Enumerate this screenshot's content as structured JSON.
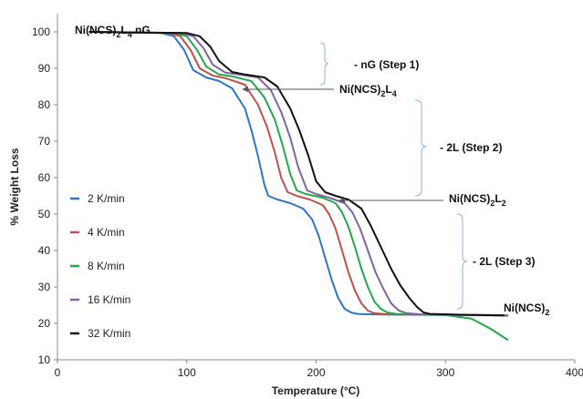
{
  "chart_data": {
    "type": "line",
    "xlabel": "Temperature (°C)",
    "ylabel": "% Weight Loss",
    "xlim": [
      0,
      400
    ],
    "ylim": [
      10,
      105
    ],
    "x_ticks": [
      "0",
      "100",
      "200",
      "300",
      "400"
    ],
    "y_ticks": [
      "10",
      "20",
      "30",
      "40",
      "50",
      "60",
      "70",
      "80",
      "90",
      "100"
    ],
    "grid": false,
    "legend_placement": "left",
    "series": [
      {
        "name": "2 K/min",
        "color": "#2E75C8",
        "x": [
          25,
          80,
          90,
          98,
          105,
          115,
          125,
          135,
          145,
          150,
          155,
          160,
          163,
          170,
          180,
          190,
          197,
          202,
          207,
          212,
          217,
          222,
          227,
          232,
          240,
          260,
          300,
          340,
          348
        ],
        "y": [
          100,
          99.7,
          98.8,
          95,
          89.5,
          87.5,
          86.5,
          84.5,
          79,
          73,
          66,
          58,
          55,
          54,
          53,
          51.5,
          48.5,
          44,
          38,
          32,
          27,
          24,
          23,
          22.6,
          22.5,
          22.4,
          22.3,
          22.2,
          22.1
        ]
      },
      {
        "name": "4 K/min",
        "color": "#C0504D",
        "x": [
          25,
          85,
          95,
          103,
          110,
          120,
          130,
          145,
          155,
          162,
          168,
          173,
          178,
          185,
          195,
          205,
          210,
          215,
          220,
          225,
          230,
          235,
          240,
          245,
          255,
          280,
          320,
          348
        ],
        "y": [
          100,
          99.7,
          98.8,
          95,
          90,
          88,
          87.3,
          85.5,
          80,
          74,
          67,
          60,
          56,
          55,
          54,
          52.5,
          50,
          46,
          40,
          34,
          29,
          25.5,
          23.5,
          22.8,
          22.5,
          22.4,
          22.3,
          22.2
        ]
      },
      {
        "name": "8 K/min",
        "color": "#22A84A",
        "x": [
          25,
          90,
          100,
          108,
          115,
          125,
          135,
          150,
          160,
          168,
          174,
          180,
          185,
          192,
          205,
          215,
          220,
          225,
          230,
          235,
          240,
          245,
          250,
          255,
          262,
          280,
          300,
          320,
          335,
          348
        ],
        "y": [
          100,
          99.7,
          98.8,
          95,
          90.5,
          88.3,
          87.8,
          86.5,
          82,
          76,
          69,
          61,
          56.5,
          55.5,
          54.5,
          53,
          50.5,
          46.5,
          41,
          35,
          30,
          26,
          24,
          23,
          22.6,
          22.4,
          22.3,
          21.3,
          18.5,
          15.5
        ]
      },
      {
        "name": "16 K/min",
        "color": "#8064A2",
        "x": [
          25,
          95,
          105,
          113,
          120,
          130,
          140,
          155,
          165,
          173,
          180,
          186,
          193,
          200,
          210,
          222,
          228,
          234,
          240,
          246,
          252,
          258,
          264,
          270,
          280,
          300,
          330,
          348
        ],
        "y": [
          100,
          99.7,
          98.8,
          95.5,
          91,
          88.8,
          88.3,
          87.5,
          84,
          78,
          71,
          63,
          56.5,
          55.5,
          54.5,
          53,
          50.5,
          46,
          40,
          34,
          29.5,
          25.5,
          23.5,
          22.8,
          22.5,
          22.4,
          22.3,
          22.2
        ]
      },
      {
        "name": "32 K/min",
        "color": "#111111",
        "x": [
          25,
          100,
          110,
          118,
          125,
          135,
          145,
          160,
          170,
          180,
          187,
          194,
          200,
          207,
          215,
          225,
          235,
          242,
          250,
          258,
          265,
          272,
          278,
          283,
          288,
          300,
          320,
          345
        ],
        "y": [
          100,
          99.7,
          98.8,
          96,
          92,
          89,
          88.3,
          87.5,
          85,
          79,
          73,
          66,
          59,
          56,
          55,
          54,
          51.5,
          47,
          41,
          35,
          30.5,
          27,
          24.5,
          23,
          22.6,
          22.5,
          22.3,
          22.2
        ]
      }
    ],
    "annotations": [
      {
        "text": "Ni(NCS)",
        "sub": "2",
        "text2": "L",
        "sub2": "4",
        "text3": ".nG"
      },
      {
        "text": "- nG (Step 1)"
      },
      {
        "text": "Ni(NCS)",
        "sub": "2",
        "text2": "L",
        "sub2": "4"
      },
      {
        "text": "- 2L (Step 2)"
      },
      {
        "text": "Ni(NCS)",
        "sub": "2",
        "text2": "L",
        "sub2": "2"
      },
      {
        "text": "- 2L (Step 3)"
      },
      {
        "text": "Ni(NCS)",
        "sub": "2"
      }
    ]
  }
}
